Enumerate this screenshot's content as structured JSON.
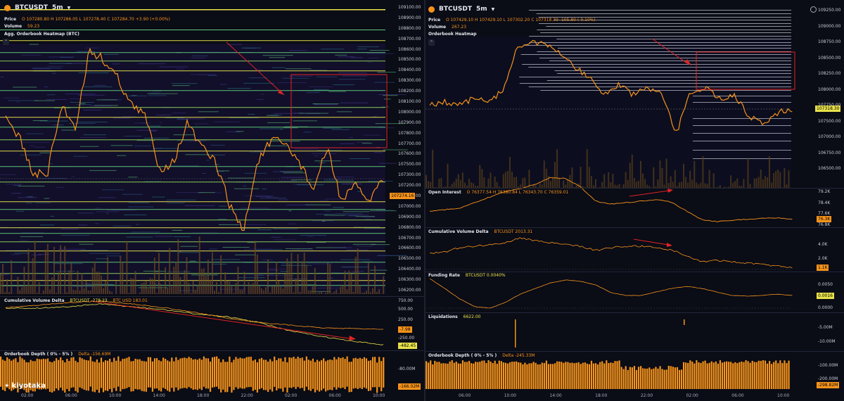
{
  "left": {
    "symbol": "BTCUSDT",
    "interval": "5m",
    "price_label": "Price",
    "price_vals": "O 107280.80  H 107286.05  L 107278.40  C 107284.70  +3.90 (+0.00%)",
    "volume_label": "Volume",
    "volume_val": "59.23",
    "heatmap_title": "Agg. Orderbook Heatmap (BTC)",
    "price_axis": [
      "109100.00",
      "108900.00",
      "108800.00",
      "108700.00",
      "108600.00",
      "108500.00",
      "108400.00",
      "108300.00",
      "108200.00",
      "108100.00",
      "108000.00",
      "107900.00",
      "107800.00",
      "107700.00",
      "107600.00",
      "107500.00",
      "107300.00",
      "107200.00",
      "107100.00",
      "107000.00",
      "106900.00",
      "106800.00",
      "106700.00",
      "106600.00",
      "106500.00",
      "106400.00",
      "106300.00",
      "106200.00"
    ],
    "last_price": "107274.16",
    "cvd_title": "Cumulative Volume Delta",
    "cvd_series1": "BTCUSDT  -278.23",
    "cvd_series2": "BTC USD  183.01",
    "cvd_axis": [
      "750.00",
      "500.00",
      "250.00",
      "-250.00"
    ],
    "cvd_tag1": "-7.98",
    "cvd_tag2": "-482.45",
    "depth_title": "Orderbook Depth ( 0% - 5% )",
    "depth_val": "Delta  -156.69M",
    "depth_axis": [
      "-80.00M"
    ],
    "depth_tag": "-166.02M",
    "brand": "kiyotaka",
    "times": [
      "02:00",
      "06:00",
      "10:00",
      "14:00",
      "18:00",
      "22:00",
      "02:00",
      "06:00",
      "10:00"
    ]
  },
  "right": {
    "symbol": "BTCUSDT",
    "interval": "5m",
    "price_label": "Price",
    "price_vals": "O 107429.10  H 107429.10  L 107302.20  C 107318.30  -105.80 (-0.10%)",
    "volume_label": "Volume",
    "volume_val": "267.23",
    "heatmap_title": "Orderbook Heatmap",
    "price_axis": [
      "109250.00",
      "109000.00",
      "108750.00",
      "108500.00",
      "108250.00",
      "108000.00",
      "107750.00",
      "107500.00",
      "107000.00",
      "106750.00",
      "106500.00"
    ],
    "last_price": "107318.30",
    "oi_title": "Open Interest",
    "oi_vals": "O 76377.54  H 76380.84  L 76343.70  C 76359.01",
    "oi_axis": [
      "79.2K",
      "78.4K",
      "77.6K",
      "76.8K"
    ],
    "oi_tag": "76.3K",
    "cvd_title": "Cumulative Volume Delta",
    "cvd_val": "BTCUSDT  2013.31",
    "cvd_axis": [
      "4.0K",
      "2.0K"
    ],
    "cvd_tag": "1.1K",
    "fr_title": "Funding Rate",
    "fr_val": "BTCUSDT  0.0040%",
    "fr_axis": [
      "0.0050",
      "0.0000"
    ],
    "fr_tag": "0.0016",
    "liq_title": "Liquidations",
    "liq_val": "6622.00",
    "liq_axis": [
      "-5.00M",
      "-10.00M"
    ],
    "depth_title": "Orderbook Depth ( 0% - 5% )",
    "depth_val": "Delta  -245.33M",
    "depth_axis": [
      "-100.00M",
      "-200.00M"
    ],
    "depth_tag": "-298.82M",
    "times": [
      "06:00",
      "10:00",
      "14:00",
      "18:00",
      "22:00",
      "02:00",
      "06:00",
      "10:00"
    ]
  },
  "colors": {
    "price_line": "#f7931a",
    "annotation": "#e02424",
    "tag_orange": "#f7931a",
    "heat_yellow": "#e8e24a",
    "heat_green": "#5fc77a",
    "white_line": "#d8dbe6"
  }
}
